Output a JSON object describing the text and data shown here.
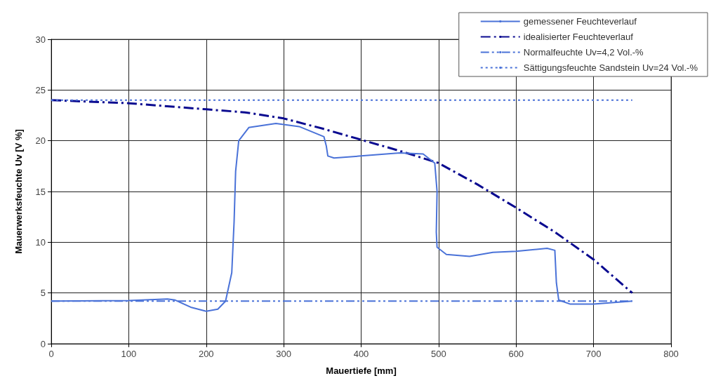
{
  "chart_data": {
    "type": "line",
    "xlabel": "Mauertiefe [mm]",
    "ylabel": "Mauerwerksfeuchte Uv [V %]",
    "xlim": [
      0,
      800
    ],
    "xticks": [
      0,
      100,
      200,
      300,
      400,
      500,
      600,
      700,
      800
    ],
    "ylim": [
      0,
      30
    ],
    "yticks": [
      0,
      5,
      10,
      15,
      20,
      25,
      30
    ],
    "grid": true,
    "legend": "top right",
    "marker": "none",
    "series": [
      {
        "name": "gemessener Feuchteverlauf",
        "color": "#4a72d8",
        "line_style": "solid",
        "x": [
          0,
          100,
          150,
          160,
          180,
          200,
          215,
          225,
          233,
          236,
          238,
          242,
          255,
          290,
          320,
          352,
          355,
          357,
          365,
          400,
          450,
          480,
          495,
          498,
          497,
          498,
          510,
          540,
          570,
          600,
          640,
          650,
          652,
          655,
          670,
          700,
          750
        ],
        "values": [
          4.2,
          4.25,
          4.4,
          4.3,
          3.6,
          3.2,
          3.4,
          4.2,
          7,
          12,
          17,
          20,
          21.3,
          21.7,
          21.4,
          20.4,
          19.5,
          18.5,
          18.3,
          18.5,
          18.8,
          18.7,
          17.8,
          15,
          11,
          9.5,
          8.8,
          8.6,
          9,
          9.1,
          9.4,
          9.2,
          6,
          4.3,
          3.9,
          3.9,
          4.2
        ]
      },
      {
        "name": "idealisierter Feuchteverlauf",
        "color": "#0a0a90",
        "line_style": "dashdot",
        "x": [
          0,
          100,
          200,
          250,
          300,
          350,
          400,
          450,
          500,
          550,
          600,
          650,
          700,
          750
        ],
        "values": [
          24,
          23.7,
          23.1,
          22.8,
          22.2,
          21.2,
          20.1,
          19,
          17.8,
          15.7,
          13.4,
          11,
          8.3,
          5
        ]
      },
      {
        "name": "Normalfeuchte Uv=4,2 Vol.-%",
        "color": "#4a72d8",
        "line_style": "dashdotdot",
        "x": [
          0,
          750
        ],
        "values": [
          4.2,
          4.2
        ]
      },
      {
        "name": "Sättigungsfeuchte Sandstein Uv=24 Vol.-%",
        "color": "#4a72d8",
        "line_style": "dotted",
        "x": [
          0,
          750
        ],
        "values": [
          24,
          24
        ]
      }
    ]
  }
}
